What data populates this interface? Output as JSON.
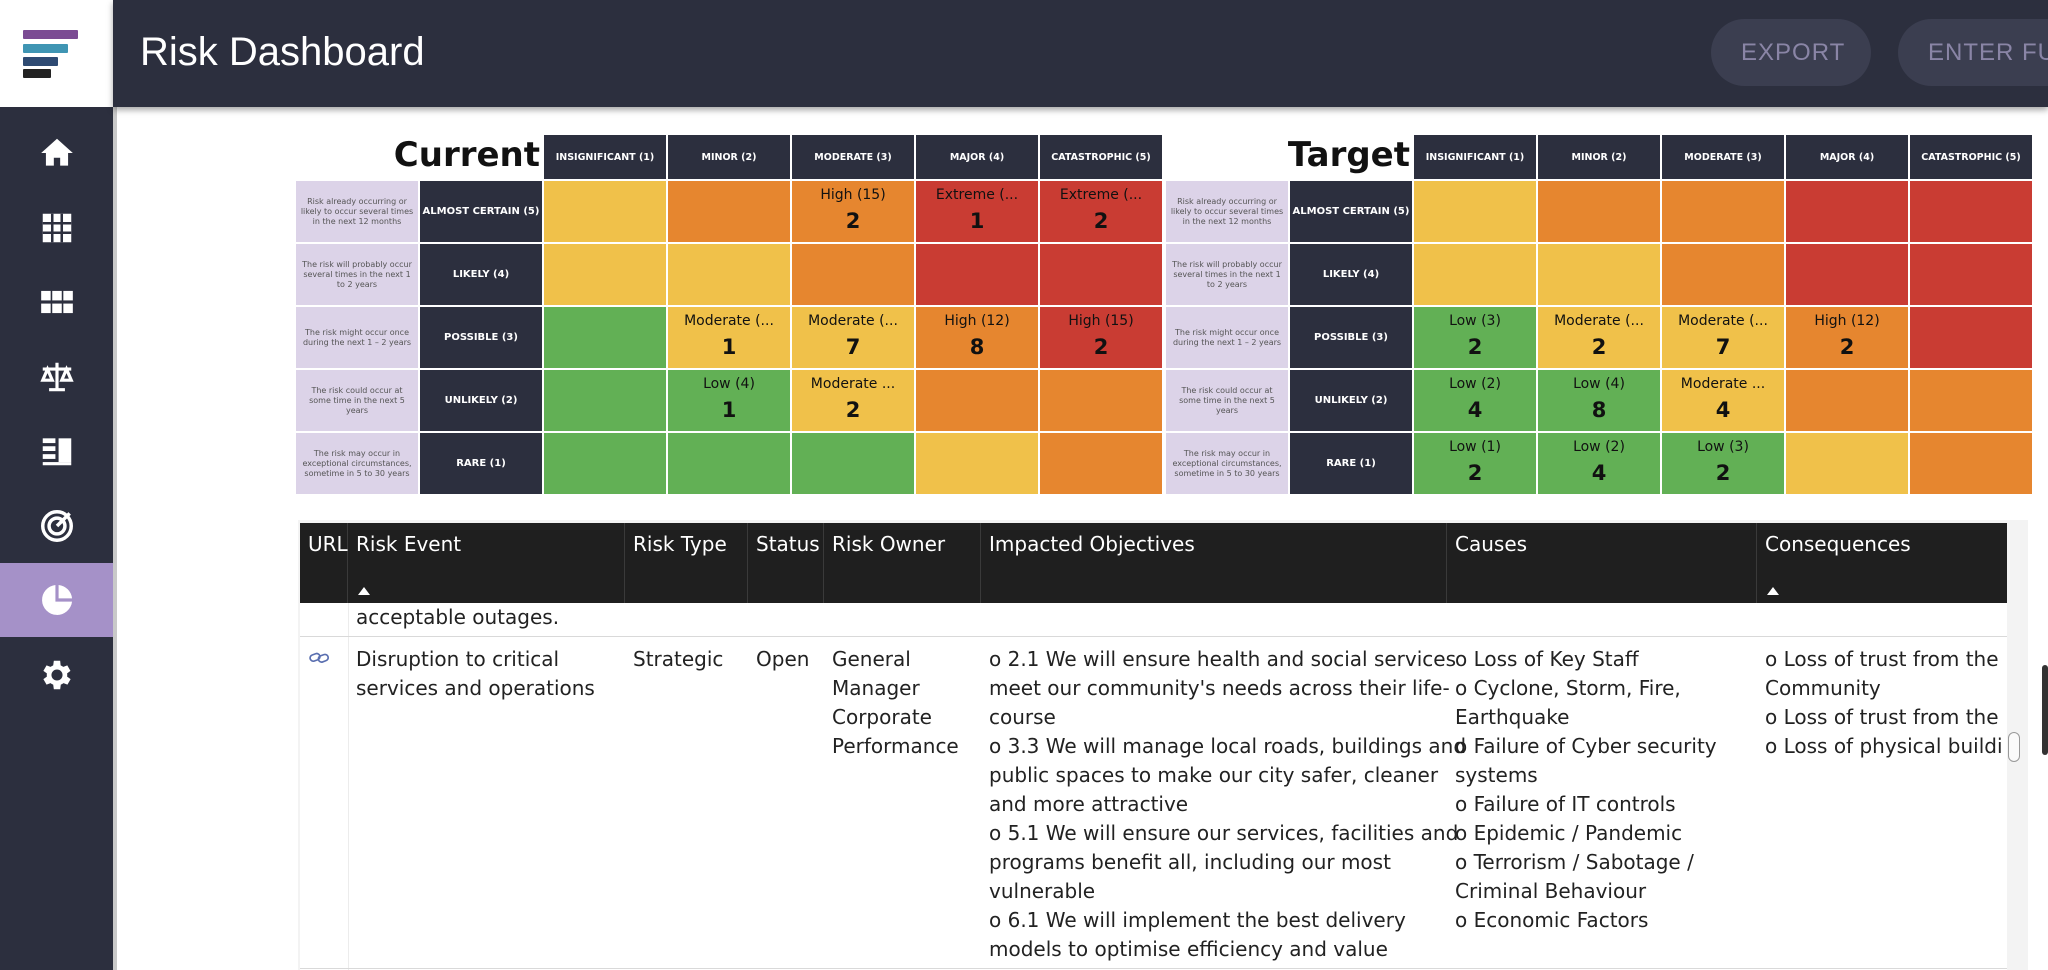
{
  "header": {
    "title": "Risk Dashboard",
    "export_label": "EXPORT",
    "enter_label": "ENTER FU"
  },
  "sidebar": {
    "items": [
      {
        "icon": "home-icon",
        "active": false
      },
      {
        "icon": "grid-icon",
        "active": false
      },
      {
        "icon": "apps-icon",
        "active": false
      },
      {
        "icon": "scales-icon",
        "active": false
      },
      {
        "icon": "report-list-icon",
        "active": false
      },
      {
        "icon": "radar-icon",
        "active": false
      },
      {
        "icon": "pie-chart-icon",
        "active": true
      },
      {
        "icon": "gear-icon",
        "active": false
      }
    ]
  },
  "colors": {
    "green": "#62b055",
    "yellow": "#f0c14a",
    "orange": "#e6862f",
    "red": "#c93c33",
    "accent": "#a591c8",
    "dark": "#2c2f3e"
  },
  "matrix_columns": [
    "INSIGNIFICANT (1)",
    "MINOR (2)",
    "MODERATE (3)",
    "MAJOR (4)",
    "CATASTROPHIC (5)"
  ],
  "matrix_rows": [
    {
      "label": "ALMOST CERTAIN (5)",
      "desc": "Risk already occurring or likely to occur several times in the next 12 months"
    },
    {
      "label": "LIKELY (4)",
      "desc": "The risk will probably occur several times in the next 1 to 2 years"
    },
    {
      "label": "POSSIBLE (3)",
      "desc": "The risk might occur once during the next 1 – 2 years"
    },
    {
      "label": "UNLIKELY (2)",
      "desc": "The risk could occur at some time in the next 5 years"
    },
    {
      "label": "RARE (1)",
      "desc": "The risk may occur in exceptional circumstances, sometime in 5 to 30 years"
    }
  ],
  "matrices": [
    {
      "title": "Current",
      "cells": [
        [
          {
            "color": "yellow"
          },
          {
            "color": "orange"
          },
          {
            "color": "orange",
            "label": "High (15)",
            "count": "2"
          },
          {
            "color": "red",
            "label": "Extreme (...",
            "count": "1"
          },
          {
            "color": "red",
            "label": "Extreme (...",
            "count": "2"
          }
        ],
        [
          {
            "color": "yellow"
          },
          {
            "color": "yellow"
          },
          {
            "color": "orange"
          },
          {
            "color": "red"
          },
          {
            "color": "red"
          }
        ],
        [
          {
            "color": "green"
          },
          {
            "color": "yellow",
            "label": "Moderate (...",
            "count": "1"
          },
          {
            "color": "yellow",
            "label": "Moderate (...",
            "count": "7"
          },
          {
            "color": "orange",
            "label": "High (12)",
            "count": "8"
          },
          {
            "color": "red",
            "label": "High (15)",
            "count": "2"
          }
        ],
        [
          {
            "color": "green"
          },
          {
            "color": "green",
            "label": "Low (4)",
            "count": "1"
          },
          {
            "color": "yellow",
            "label": "Moderate ...",
            "count": "2"
          },
          {
            "color": "orange"
          },
          {
            "color": "orange"
          }
        ],
        [
          {
            "color": "green"
          },
          {
            "color": "green"
          },
          {
            "color": "green"
          },
          {
            "color": "yellow"
          },
          {
            "color": "orange"
          }
        ]
      ]
    },
    {
      "title": "Target",
      "cells": [
        [
          {
            "color": "yellow"
          },
          {
            "color": "orange"
          },
          {
            "color": "orange"
          },
          {
            "color": "red"
          },
          {
            "color": "red"
          }
        ],
        [
          {
            "color": "yellow"
          },
          {
            "color": "yellow"
          },
          {
            "color": "orange"
          },
          {
            "color": "red"
          },
          {
            "color": "red"
          }
        ],
        [
          {
            "color": "green",
            "label": "Low (3)",
            "count": "2"
          },
          {
            "color": "yellow",
            "label": "Moderate (...",
            "count": "2"
          },
          {
            "color": "yellow",
            "label": "Moderate (...",
            "count": "7"
          },
          {
            "color": "orange",
            "label": "High (12)",
            "count": "2"
          },
          {
            "color": "red"
          }
        ],
        [
          {
            "color": "green",
            "label": "Low (2)",
            "count": "4"
          },
          {
            "color": "green",
            "label": "Low (4)",
            "count": "8"
          },
          {
            "color": "yellow",
            "label": "Moderate ...",
            "count": "4"
          },
          {
            "color": "orange"
          },
          {
            "color": "orange"
          }
        ],
        [
          {
            "color": "green",
            "label": "Low (1)",
            "count": "2"
          },
          {
            "color": "green",
            "label": "Low (2)",
            "count": "4"
          },
          {
            "color": "green",
            "label": "Low (3)",
            "count": "2"
          },
          {
            "color": "yellow"
          },
          {
            "color": "orange"
          }
        ]
      ]
    }
  ],
  "table": {
    "columns": [
      {
        "label": "URL",
        "sorted": false
      },
      {
        "label": "Risk Event",
        "sorted": true
      },
      {
        "label": "Risk Type",
        "sorted": false
      },
      {
        "label": "Status",
        "sorted": false
      },
      {
        "label": "Risk Owner",
        "sorted": false
      },
      {
        "label": "Impacted Objectives",
        "sorted": false
      },
      {
        "label": "Causes",
        "sorted": false
      },
      {
        "label": "Consequences",
        "sorted": true
      }
    ],
    "partial_text": "acceptable outages.",
    "row": {
      "risk_event": [
        "Disruption to critical",
        "services and operations"
      ],
      "risk_type": "Strategic",
      "status": "Open",
      "risk_owner": [
        "General",
        "Manager",
        "Corporate",
        "Performance"
      ],
      "impacted_objectives": [
        "o 2.1 We will ensure health and social services",
        "meet our community's needs across their life-",
        "course",
        "o 3.3 We will manage local roads, buildings and",
        "public spaces to make our city safer, cleaner",
        "and more attractive",
        "o 5.1 We will ensure our services, facilities and",
        "programs benefit all, including our most",
        "vulnerable",
        "o 6.1 We will implement the best delivery",
        "models to optimise efficiency and value"
      ],
      "causes": [
        "o Loss of Key Staff",
        "o Cyclone, Storm, Fire,",
        "Earthquake",
        "o Failure of Cyber security",
        "systems",
        "o Failure of IT controls",
        "o Epidemic / Pandemic",
        "o Terrorism / Sabotage /",
        "Criminal Behaviour",
        "o Economic Factors"
      ],
      "consequences": [
        "o Loss of trust from the",
        "Community",
        "o Loss of trust from the M",
        "o Loss of physical building"
      ]
    }
  }
}
